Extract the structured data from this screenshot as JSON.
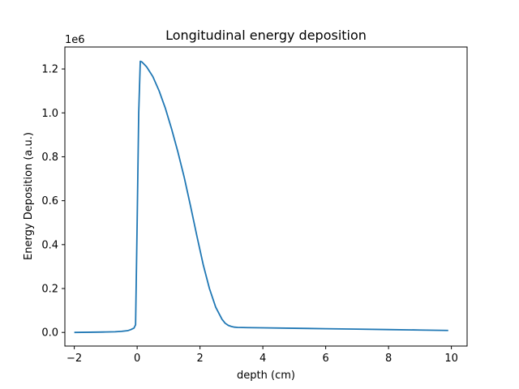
{
  "chart_data": {
    "type": "line",
    "title": "Longitudinal energy deposition",
    "xlabel": "depth (cm)",
    "ylabel": "Energy Deposition (a.u.)",
    "y_offset_label": "1e6",
    "xlim": [
      -2.3,
      10.5
    ],
    "ylim": [
      -0.062,
      1.3
    ],
    "x_ticks": [
      -2,
      0,
      2,
      4,
      6,
      8,
      10
    ],
    "x_tick_labels": [
      "−2",
      "0",
      "2",
      "4",
      "6",
      "8",
      "10"
    ],
    "y_ticks": [
      0.0,
      0.2,
      0.4,
      0.6,
      0.8,
      1.0,
      1.2
    ],
    "y_tick_labels": [
      "0.0",
      "0.2",
      "0.4",
      "0.6",
      "0.8",
      "1.0",
      "1.2"
    ],
    "grid": false,
    "line_color": "#1f77b4",
    "series": [
      {
        "x": [
          -2.0,
          -1.5,
          -1.0,
          -0.7,
          -0.5,
          -0.3,
          -0.2,
          -0.1,
          -0.05,
          0.0,
          0.05,
          0.1,
          0.15,
          0.3,
          0.5,
          0.7,
          0.9,
          1.1,
          1.3,
          1.5,
          1.7,
          1.9,
          2.1,
          2.3,
          2.5,
          2.7,
          2.8,
          2.9,
          3.0,
          3.1,
          3.2,
          3.5,
          4.0,
          5.0,
          6.0,
          7.0,
          8.0,
          9.0,
          9.9
        ],
        "y": [
          0.0,
          0.001,
          0.002,
          0.003,
          0.005,
          0.008,
          0.013,
          0.02,
          0.035,
          0.5,
          1.0,
          1.235,
          1.232,
          1.21,
          1.165,
          1.1,
          1.02,
          0.925,
          0.82,
          0.705,
          0.575,
          0.44,
          0.31,
          0.2,
          0.115,
          0.06,
          0.042,
          0.032,
          0.027,
          0.024,
          0.023,
          0.022,
          0.021,
          0.019,
          0.017,
          0.015,
          0.013,
          0.011,
          0.009
        ]
      }
    ]
  }
}
